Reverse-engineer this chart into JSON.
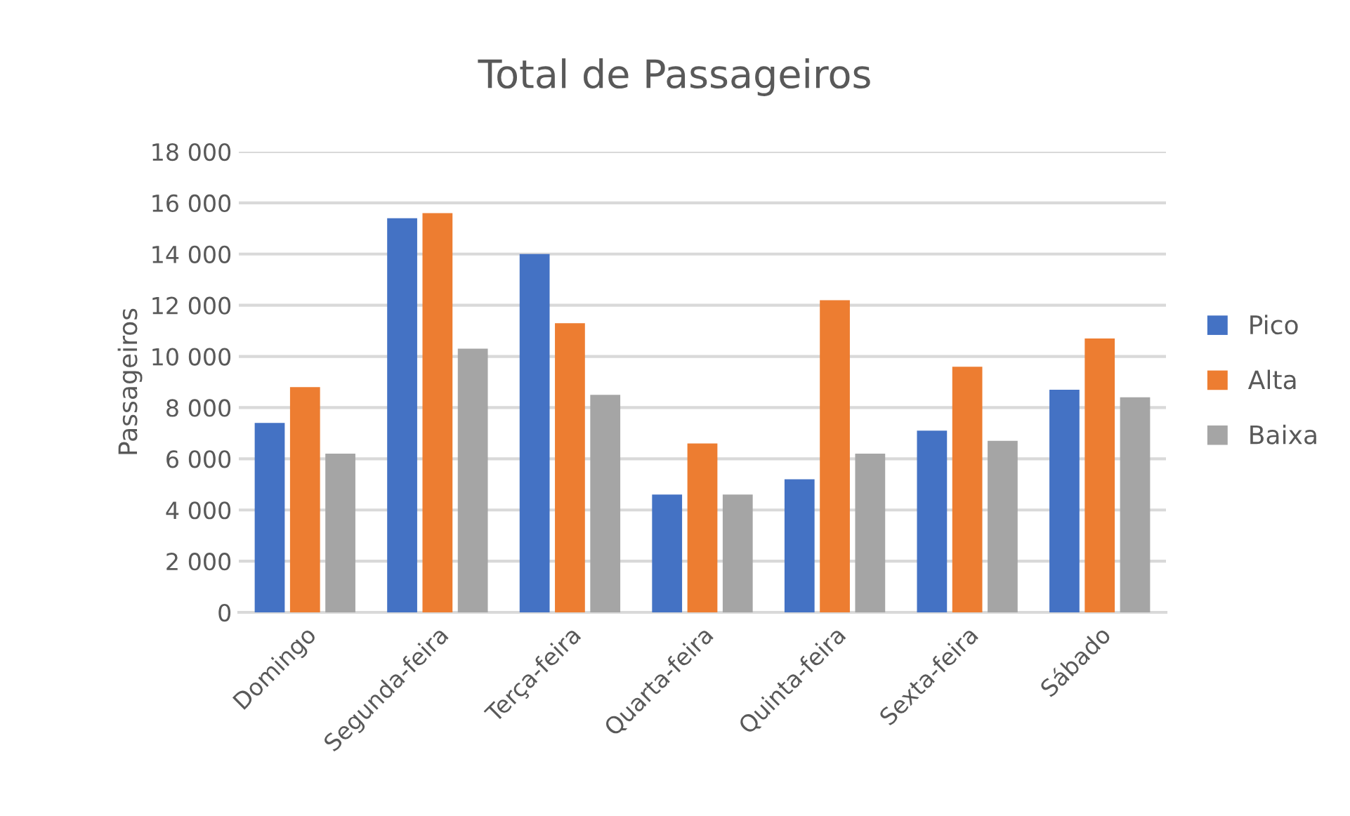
{
  "chart_data": {
    "type": "bar",
    "title": "Total de Passageiros",
    "ylabel": "Passageiros",
    "categories": [
      "Domingo",
      "Segunda-feira",
      "Terça-feira",
      "Quarta-feira",
      "Quinta-feira",
      "Sexta-feira",
      "Sábado"
    ],
    "series": [
      {
        "name": "Pico",
        "color": "#4472c4",
        "values": [
          7400,
          15400,
          14000,
          4600,
          5200,
          7100,
          8700
        ]
      },
      {
        "name": "Alta",
        "color": "#ed7d31",
        "values": [
          8800,
          15600,
          11300,
          6600,
          12200,
          9600,
          10700
        ]
      },
      {
        "name": "Baixa",
        "color": "#a5a5a5",
        "values": [
          6200,
          10300,
          8500,
          4600,
          6200,
          6700,
          8400
        ]
      }
    ],
    "ylim": [
      0,
      18000
    ],
    "yticks": [
      0,
      {
        "value": 2000,
        "label": "2 000"
      },
      {
        "value": 4000,
        "label": "4 000"
      },
      {
        "value": 6000,
        "label": "6 000"
      },
      {
        "value": 8000,
        "label": "8 000"
      },
      {
        "value": 10000,
        "label": "10 000"
      },
      {
        "value": 12000,
        "label": "12 000"
      },
      {
        "value": 14000,
        "label": "14 000"
      },
      {
        "value": 16000,
        "label": "16 000"
      },
      {
        "value": 18000,
        "label": "18 000"
      }
    ],
    "grid": "y",
    "legend": "right"
  }
}
